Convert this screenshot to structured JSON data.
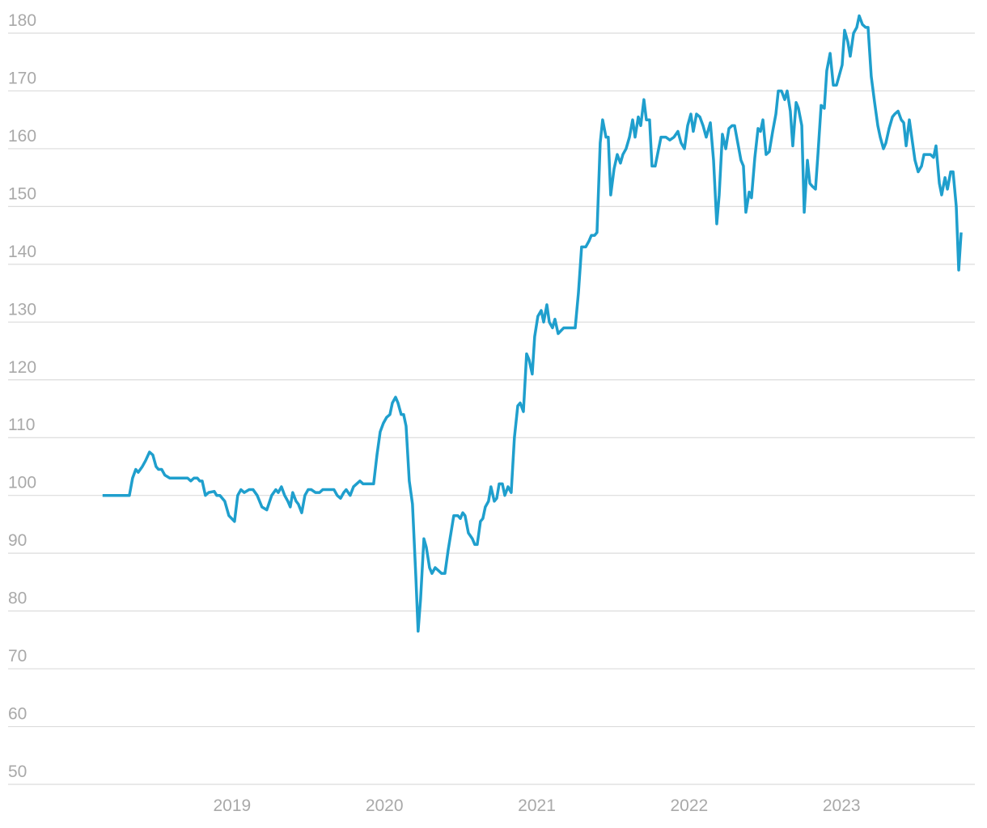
{
  "chart_data": {
    "type": "line",
    "x": [
      2018.15,
      2018.326,
      2018.347,
      2018.368,
      2018.384,
      2018.411,
      2018.432,
      2018.458,
      2018.48,
      2018.501,
      2018.517,
      2018.538,
      2018.559,
      2018.591,
      2018.708,
      2018.729,
      2018.75,
      2018.772,
      2018.788,
      2018.804,
      2018.825,
      2018.846,
      2018.883,
      2018.899,
      2018.92,
      2018.952,
      2018.979,
      2019.016,
      2019.037,
      2019.058,
      2019.08,
      2019.112,
      2019.138,
      2019.165,
      2019.196,
      2019.228,
      2019.26,
      2019.287,
      2019.303,
      2019.324,
      2019.345,
      2019.366,
      2019.382,
      2019.398,
      2019.42,
      2019.435,
      2019.457,
      2019.478,
      2019.499,
      2019.52,
      2019.547,
      2019.574,
      2019.595,
      2019.669,
      2019.69,
      2019.712,
      2019.733,
      2019.749,
      2019.775,
      2019.797,
      2019.839,
      2019.86,
      2019.929,
      2019.951,
      2019.972,
      2019.993,
      2020.014,
      2020.036,
      2020.052,
      2020.073,
      2020.089,
      2020.11,
      2020.126,
      2020.142,
      2020.163,
      2020.184,
      2020.206,
      2020.221,
      2020.237,
      2020.259,
      2020.275,
      2020.296,
      2020.312,
      2020.333,
      2020.354,
      2020.375,
      2020.397,
      2020.418,
      2020.455,
      2020.482,
      2020.498,
      2020.514,
      2020.529,
      2020.551,
      2020.577,
      2020.593,
      2020.609,
      2020.63,
      2020.646,
      2020.662,
      2020.683,
      2020.699,
      2020.721,
      2020.737,
      2020.753,
      2020.774,
      2020.79,
      2020.811,
      2020.832,
      2020.853,
      2020.875,
      2020.891,
      2020.912,
      2020.933,
      2020.949,
      2020.97,
      2020.986,
      2021.007,
      2021.029,
      2021.045,
      2021.066,
      2021.082,
      2021.103,
      2021.119,
      2021.14,
      2021.177,
      2021.252,
      2021.273,
      2021.294,
      2021.321,
      2021.342,
      2021.358,
      2021.379,
      2021.395,
      2021.416,
      2021.432,
      2021.454,
      2021.469,
      2021.485,
      2021.507,
      2021.528,
      2021.549,
      2021.565,
      2021.586,
      2021.608,
      2021.629,
      2021.645,
      2021.666,
      2021.682,
      2021.703,
      2021.719,
      2021.74,
      2021.756,
      2021.777,
      2021.815,
      2021.847,
      2021.873,
      2021.9,
      2021.926,
      2021.947,
      2021.969,
      2021.99,
      2022.011,
      2022.027,
      2022.048,
      2022.07,
      2022.091,
      2022.112,
      2022.139,
      2022.16,
      2022.181,
      2022.197,
      2022.218,
      2022.24,
      2022.261,
      2022.282,
      2022.298,
      2022.319,
      2022.34,
      2022.356,
      2022.372,
      2022.394,
      2022.409,
      2022.431,
      2022.452,
      2022.468,
      2022.484,
      2022.505,
      2022.526,
      2022.548,
      2022.569,
      2022.585,
      2022.606,
      2022.627,
      2022.643,
      2022.664,
      2022.68,
      2022.702,
      2022.717,
      2022.739,
      2022.755,
      2022.776,
      2022.792,
      2022.808,
      2022.829,
      2022.845,
      2022.866,
      2022.887,
      2022.903,
      2022.925,
      2022.946,
      2022.967,
      2022.983,
      2023.004,
      2023.02,
      2023.041,
      2023.057,
      2023.079,
      2023.1,
      2023.116,
      2023.137,
      2023.158,
      2023.174,
      2023.195,
      2023.217,
      2023.238,
      2023.254,
      2023.275,
      2023.291,
      2023.312,
      2023.334,
      2023.349,
      2023.371,
      2023.392,
      2023.408,
      2023.424,
      2023.445,
      2023.466,
      2023.482,
      2023.503,
      2023.525,
      2023.541,
      2023.583,
      2023.604,
      2023.62,
      2023.642,
      2023.657,
      2023.679,
      2023.695,
      2023.716,
      2023.732,
      2023.753,
      2023.769,
      2023.785
    ],
    "series": [
      {
        "color": "#1f9fcd",
        "values": [
          100,
          100,
          103,
          104.5,
          104,
          105,
          106,
          107.5,
          107,
          105,
          104.5,
          104.5,
          103.5,
          103,
          103,
          102.5,
          103,
          103,
          102.5,
          102.5,
          100,
          100.5,
          100.7,
          100,
          100,
          99,
          96.5,
          95.5,
          100,
          101,
          100.5,
          101,
          101,
          100,
          98,
          97.5,
          100,
          101,
          100.5,
          101.5,
          100,
          99,
          98,
          100.5,
          99,
          98.5,
          97,
          100,
          101,
          101,
          100.5,
          100.5,
          101,
          101,
          100,
          99.5,
          100.5,
          101,
          100,
          101.5,
          102.5,
          102,
          102,
          107,
          111,
          112.5,
          113.5,
          114,
          116,
          117,
          116,
          114,
          114,
          112,
          102.5,
          98.5,
          86,
          76.5,
          82,
          92.5,
          91,
          87.5,
          86.5,
          87.5,
          87,
          86.5,
          86.5,
          90.5,
          96.5,
          96.5,
          96,
          97,
          96.5,
          93.5,
          92.5,
          91.5,
          91.5,
          95.5,
          96,
          98,
          99,
          101.5,
          99,
          99.5,
          102,
          102,
          100,
          101.5,
          100.5,
          110,
          115.5,
          116,
          114.5,
          124.5,
          123.5,
          121,
          127.5,
          131,
          132,
          130,
          133,
          130,
          129,
          130.5,
          128,
          129,
          129,
          135,
          143,
          143,
          144,
          145,
          145,
          145.5,
          161,
          165,
          162,
          162,
          152,
          156.5,
          159,
          157.5,
          159,
          160,
          162,
          165,
          162,
          165.5,
          164,
          168.5,
          165,
          165,
          157,
          157,
          162,
          162,
          161.5,
          162,
          163,
          161,
          160,
          164,
          166,
          163,
          166,
          165.5,
          164,
          162,
          164.5,
          158,
          147,
          152,
          162.5,
          160,
          163.5,
          164,
          164,
          161,
          158,
          157,
          149,
          152.5,
          151.5,
          158.5,
          163.5,
          163,
          165,
          159,
          159.5,
          163,
          166,
          170,
          170,
          168.5,
          170,
          166.5,
          160.5,
          168,
          167,
          164,
          149,
          158,
          154,
          153.5,
          153,
          159,
          167.5,
          167,
          173.5,
          176.5,
          171,
          171,
          172.5,
          174.5,
          180.5,
          178.5,
          176,
          180,
          181,
          183,
          181.5,
          181,
          181,
          172.5,
          168,
          164,
          162,
          160,
          161,
          163.5,
          165.5,
          166,
          166.5,
          165,
          164.5,
          160.5,
          165,
          161,
          158,
          156,
          157,
          159,
          159,
          158.5,
          160.5,
          154,
          152,
          155,
          153,
          156,
          156,
          150,
          139,
          145.5
        ]
      }
    ],
    "xlim": [
      2017.53,
      2023.875
    ],
    "xticks": [
      2019,
      2020,
      2021,
      2022,
      2023
    ],
    "ylim": [
      50,
      180
    ],
    "yticks": [
      50,
      60,
      70,
      80,
      90,
      100,
      110,
      120,
      130,
      140,
      150,
      160,
      170,
      180
    ],
    "grid": true
  }
}
